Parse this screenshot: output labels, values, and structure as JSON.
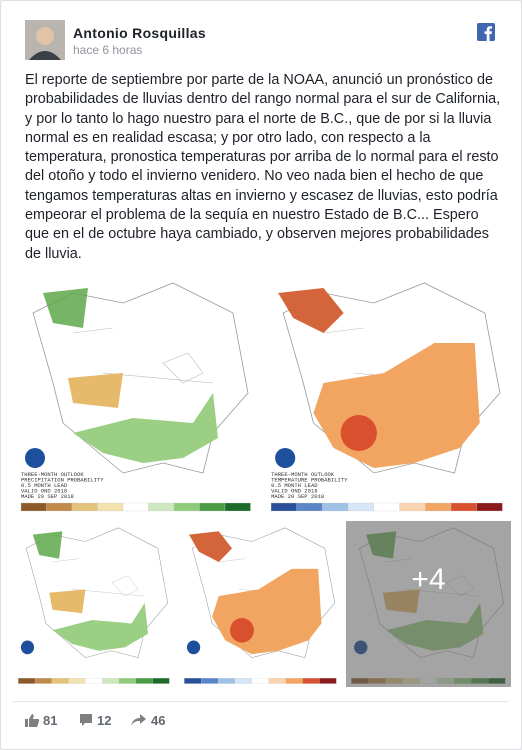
{
  "post": {
    "author": "Antonio Rosquillas",
    "time": "hace 6 horas",
    "body": "El reporte de septiembre por parte de la NOAA, anunció un pronóstico de probabilidades de lluvias dentro del rango normal para el sur de California, y por lo tanto lo hago nuestro para el norte de B.C., que de por si la lluvia normal es en realidad escasa; y por otro lado, con respecto a la temperatura, pronostica temperaturas por arriba de lo normal para el resto del otoño y todo el invierno venidero. No veo nada bien el hecho de que tengamos temperaturas altas en invierno y escasez de lluvias, esto podría empeorar el problema de la sequía en nuestro Estado de B.C... Espero que en el de octubre haya cambiado, y observen mejores probabilidades de lluvia.",
    "images": [
      {
        "caption": [
          "THREE-MONTH OUTLOOK",
          "PRECIPITATION PROBABILITY",
          "0.5 MONTH LEAD",
          "VALID OND 2018",
          "MADE 20 SEP 2018"
        ]
      },
      {
        "caption": [
          "THREE-MONTH OUTLOOK",
          "TEMPERATURE PROBABILITY",
          "0.5 MONTH LEAD",
          "VALID OND 2018",
          "MADE 20 SEP 2018"
        ]
      }
    ],
    "more_photos": "+4",
    "reactions": {
      "likes": 81,
      "comments": 12,
      "shares": 46
    }
  }
}
